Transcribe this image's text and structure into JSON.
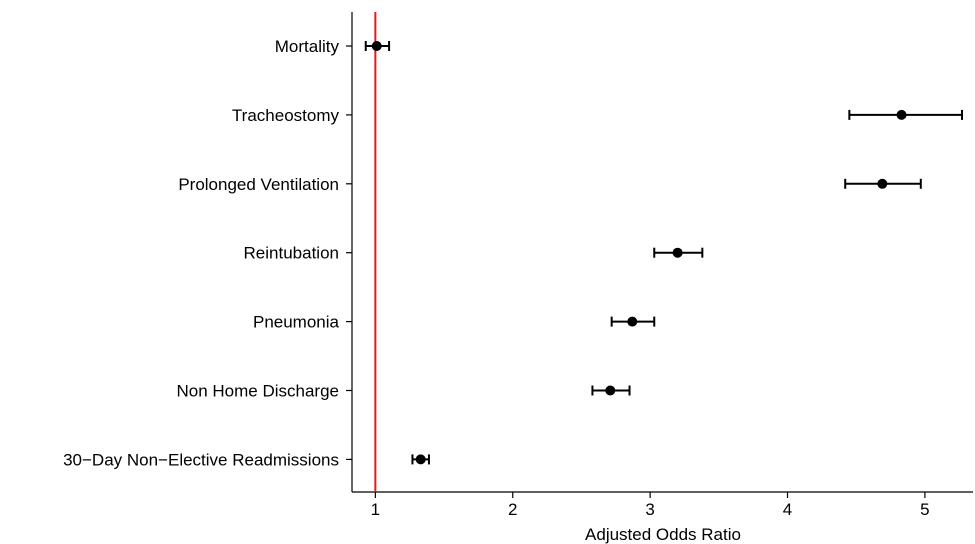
{
  "chart_data": {
    "type": "forest",
    "xlabel": "Adjusted Odds Ratio",
    "ylabel": "",
    "title": "",
    "xlim": [
      0.83,
      5.35
    ],
    "xticks": [
      1,
      2,
      3,
      4,
      5
    ],
    "reference_line": {
      "x": 1,
      "color": "#e41a1c"
    },
    "grid": false,
    "categories": [
      "Mortality",
      "Tracheostomy",
      "Prolonged Ventilation",
      "Reintubation",
      "Pneumonia",
      "Non Home Discharge",
      "30−Day Non−Elective Readmissions"
    ],
    "estimates": [
      1.01,
      4.83,
      4.69,
      3.2,
      2.87,
      2.71,
      1.33
    ],
    "lower": [
      0.93,
      4.45,
      4.42,
      3.03,
      2.72,
      2.58,
      1.27
    ],
    "upper": [
      1.1,
      5.27,
      4.97,
      3.38,
      3.03,
      2.85,
      1.39
    ]
  }
}
